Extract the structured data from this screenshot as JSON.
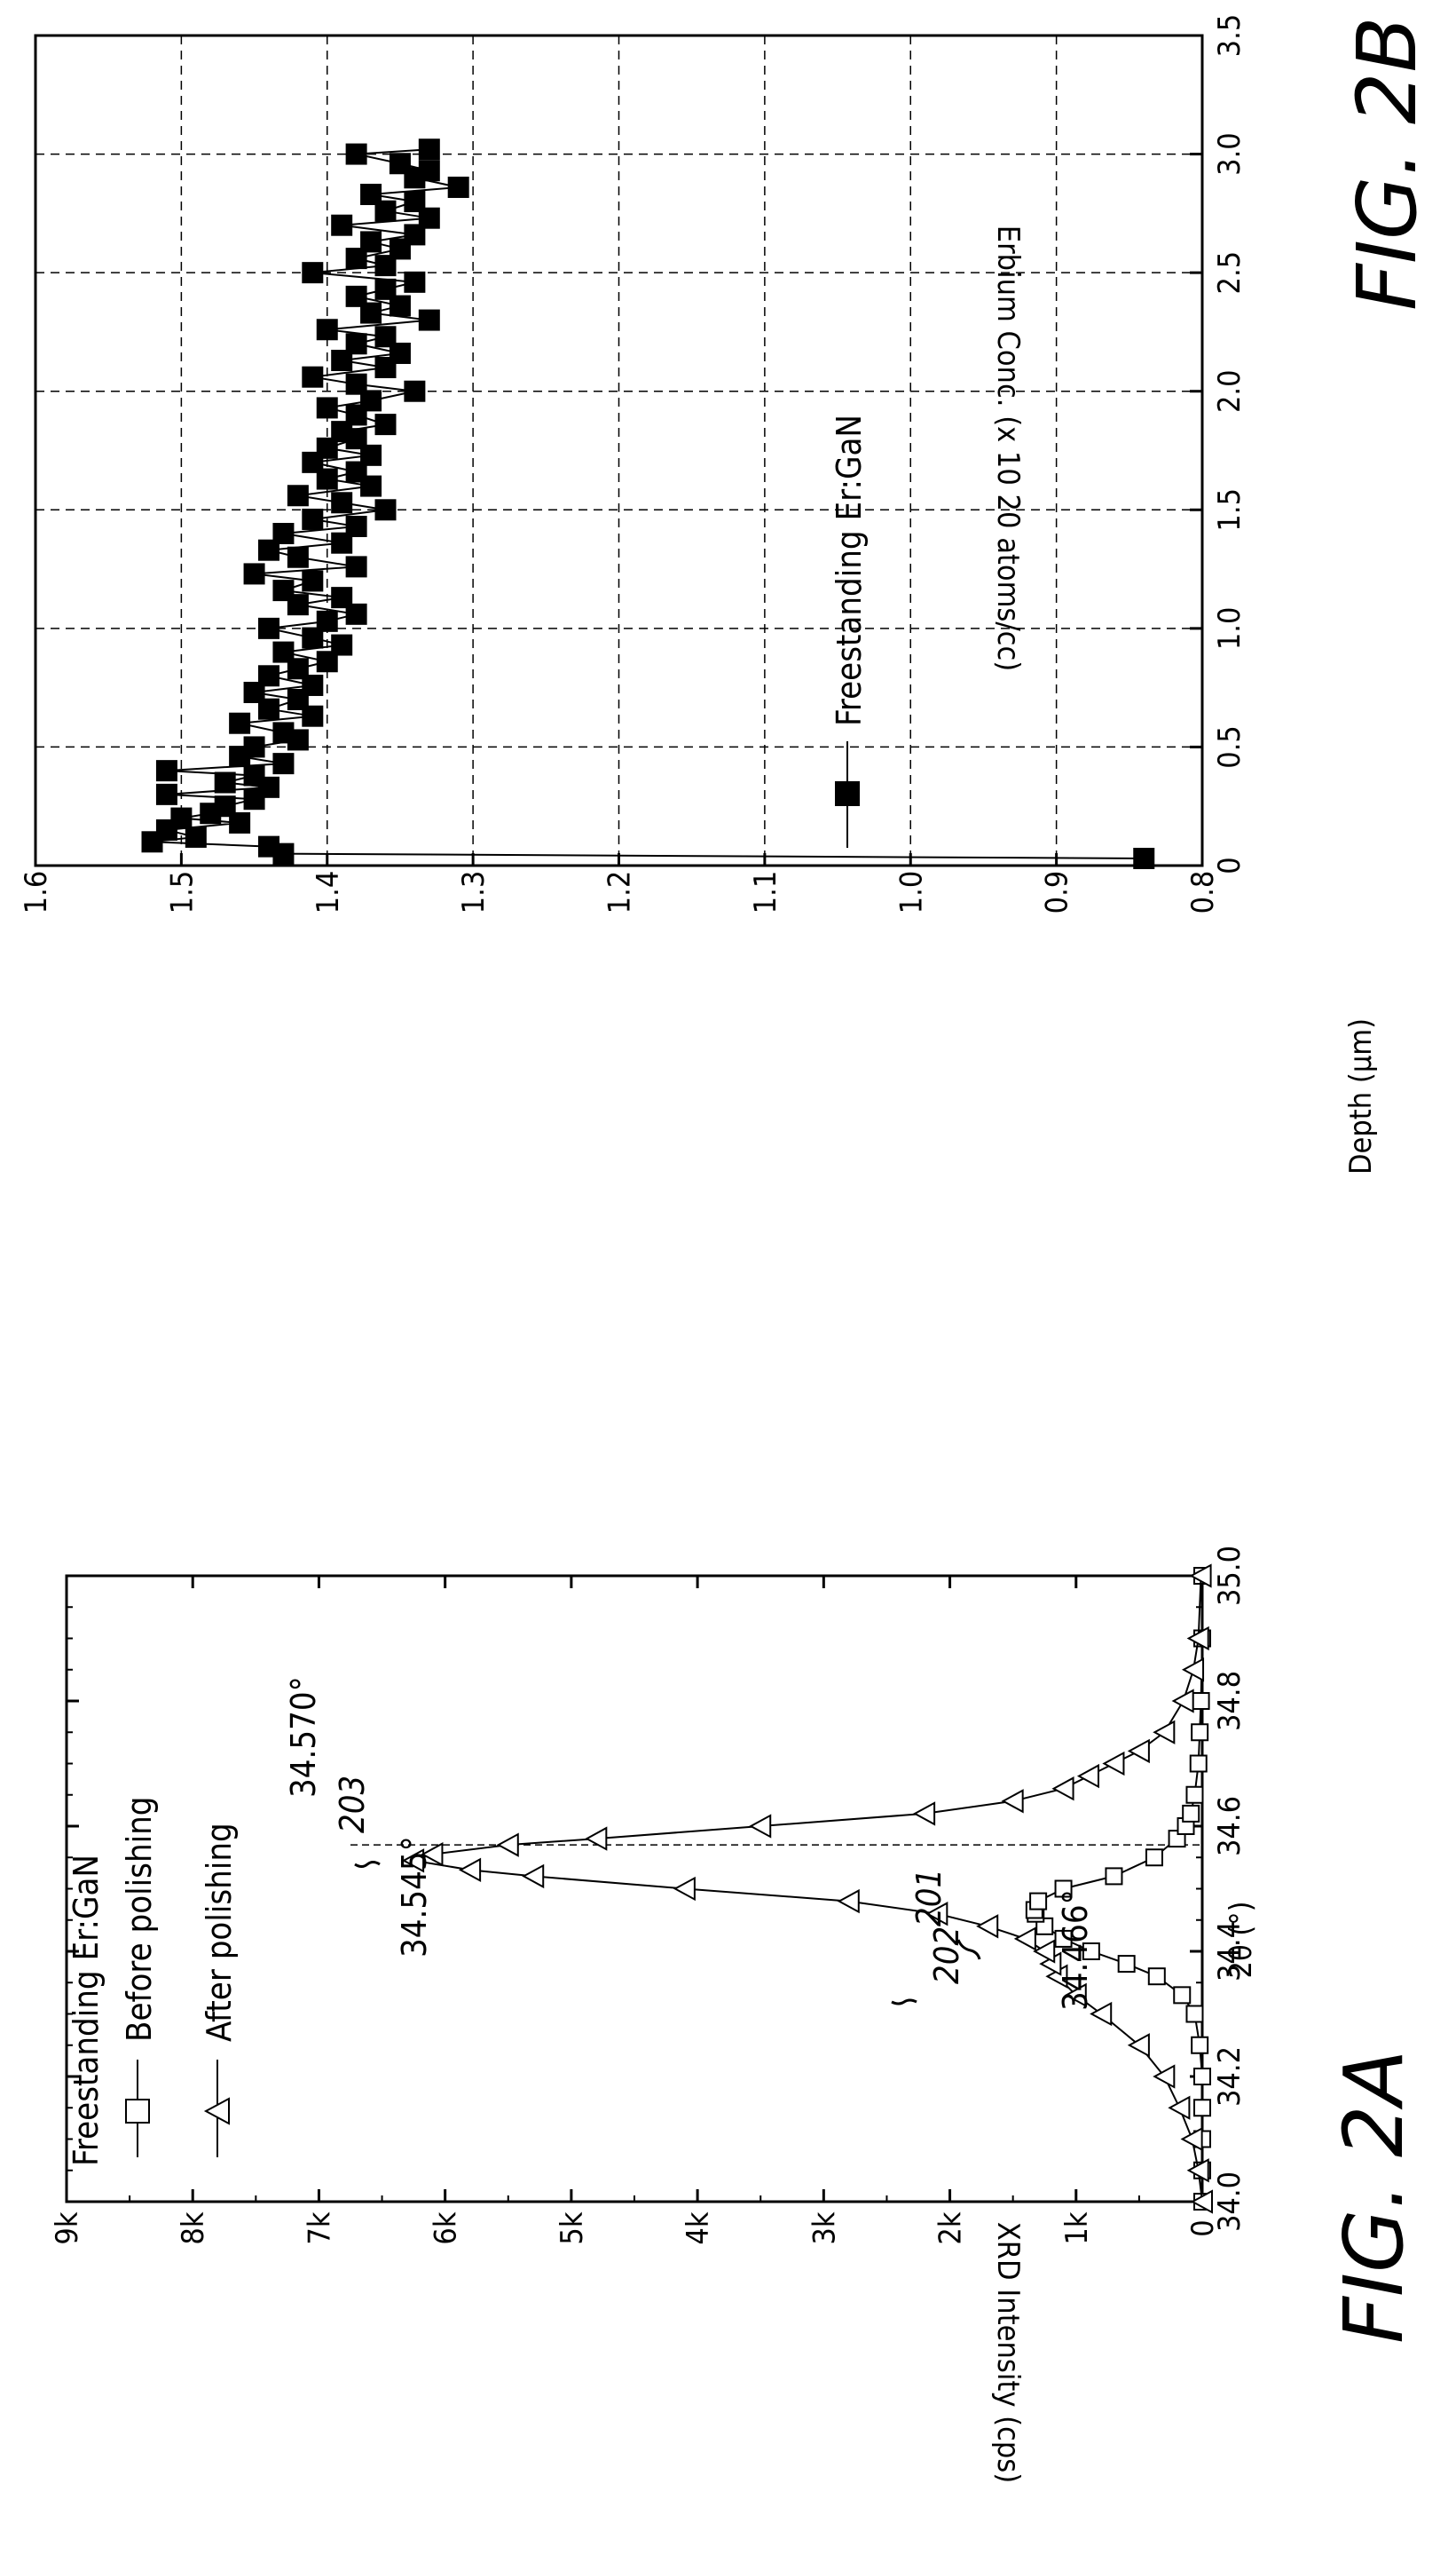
{
  "chart_data": [
    {
      "id": "2A",
      "type": "scatter",
      "figure_label": "FIG. 2A",
      "xlabel": "2θ (°)",
      "ylabel": "XRD Intensity (cps)",
      "xlim": [
        34.0,
        35.0
      ],
      "ylim": [
        0,
        9000
      ],
      "xticks": [
        34.0,
        34.2,
        34.4,
        34.6,
        34.8,
        35.0
      ],
      "xtick_labels": [
        "34.0",
        "34.2",
        "34.4",
        "34.6",
        "34.8",
        "35.0"
      ],
      "yticks": [
        0,
        1000,
        2000,
        3000,
        4000,
        5000,
        6000,
        7000,
        8000,
        9000
      ],
      "ytick_labels": [
        "0",
        "1k",
        "2k",
        "3k",
        "4k",
        "5k",
        "6k",
        "7k",
        "8k",
        "9k"
      ],
      "legend_title": "Freestanding Er:GaN",
      "series": [
        {
          "name": "Before polishing",
          "marker": "square-open",
          "x": [
            34.0,
            34.05,
            34.1,
            34.15,
            34.2,
            34.25,
            34.3,
            34.33,
            34.36,
            34.38,
            34.4,
            34.42,
            34.44,
            34.46,
            34.466,
            34.48,
            34.5,
            34.52,
            34.55,
            34.58,
            34.6,
            34.62,
            34.65,
            34.7,
            34.75,
            34.8,
            34.9,
            35.0
          ],
          "y": [
            0,
            0,
            0,
            0,
            0,
            20,
            60,
            160,
            360,
            600,
            880,
            1100,
            1250,
            1320,
            1330,
            1300,
            1100,
            700,
            380,
            200,
            130,
            90,
            60,
            30,
            20,
            10,
            0,
            0
          ]
        },
        {
          "name": "After polishing",
          "marker": "triangle-open",
          "x": [
            34.0,
            34.05,
            34.1,
            34.15,
            34.2,
            34.25,
            34.3,
            34.33,
            34.36,
            34.38,
            34.4,
            34.42,
            34.44,
            34.46,
            34.48,
            34.5,
            34.52,
            34.53,
            34.545,
            34.555,
            34.57,
            34.58,
            34.6,
            34.62,
            34.64,
            34.66,
            34.68,
            34.7,
            34.72,
            34.75,
            34.8,
            34.85,
            34.9,
            35.0
          ],
          "y": [
            0,
            30,
            80,
            180,
            300,
            500,
            800,
            1000,
            1150,
            1200,
            1250,
            1400,
            1700,
            2100,
            2800,
            4100,
            5300,
            5800,
            6250,
            6100,
            5500,
            4800,
            3500,
            2200,
            1500,
            1100,
            900,
            700,
            500,
            300,
            150,
            70,
            30,
            10
          ]
        }
      ],
      "annotations": [
        {
          "text": "34.570°",
          "x": 34.57
        },
        {
          "text": "34.545°",
          "x": 34.545
        },
        {
          "text": "34.466°",
          "x": 34.466
        },
        {
          "text": "203",
          "ref": "After polishing peak"
        },
        {
          "text": "202",
          "ref": "After polishing"
        },
        {
          "text": "201",
          "ref": "Before polishing"
        }
      ],
      "vline": 34.57,
      "grid": false
    },
    {
      "id": "2B",
      "type": "line",
      "figure_label": "FIG. 2B",
      "xlabel": "Depth (μm)",
      "ylabel": "Erbium Conc. (x 10 20 atoms/cc)",
      "xlim": [
        0,
        3.5
      ],
      "ylim": [
        0.8,
        1.6
      ],
      "xticks": [
        0,
        0.5,
        1.0,
        1.5,
        2.0,
        2.5,
        3.0,
        3.5
      ],
      "xtick_labels": [
        "0",
        "0.5",
        "1.0",
        "1.5",
        "2.0",
        "2.5",
        "3.0",
        "3.5"
      ],
      "yticks": [
        0.8,
        0.9,
        1.0,
        1.1,
        1.2,
        1.3,
        1.4,
        1.5,
        1.6
      ],
      "ytick_labels": [
        "0.8",
        "0.9",
        "1.0",
        "1.1",
        "1.2",
        "1.3",
        "1.4",
        "1.5",
        "1.6"
      ],
      "grid": true,
      "series": [
        {
          "name": "Freestanding Er:GaN",
          "marker": "square-filled",
          "x": [
            0.03,
            0.05,
            0.08,
            0.1,
            0.12,
            0.15,
            0.18,
            0.2,
            0.22,
            0.25,
            0.28,
            0.3,
            0.33,
            0.35,
            0.38,
            0.4,
            0.43,
            0.46,
            0.5,
            0.53,
            0.56,
            0.6,
            0.63,
            0.66,
            0.7,
            0.73,
            0.76,
            0.8,
            0.83,
            0.86,
            0.9,
            0.93,
            0.96,
            1.0,
            1.03,
            1.06,
            1.1,
            1.13,
            1.16,
            1.2,
            1.23,
            1.26,
            1.3,
            1.33,
            1.36,
            1.4,
            1.43,
            1.46,
            1.5,
            1.53,
            1.56,
            1.6,
            1.63,
            1.66,
            1.7,
            1.73,
            1.76,
            1.8,
            1.83,
            1.86,
            1.9,
            1.93,
            1.96,
            2.0,
            2.03,
            2.06,
            2.1,
            2.13,
            2.16,
            2.2,
            2.23,
            2.26,
            2.3,
            2.33,
            2.36,
            2.4,
            2.43,
            2.46,
            2.5,
            2.53,
            2.56,
            2.6,
            2.63,
            2.66,
            2.7,
            2.73,
            2.76,
            2.8,
            2.83,
            2.86,
            2.9,
            2.93,
            2.96,
            3.0,
            3.02
          ],
          "y": [
            0.84,
            1.43,
            1.44,
            1.52,
            1.49,
            1.51,
            1.46,
            1.5,
            1.48,
            1.47,
            1.45,
            1.51,
            1.44,
            1.47,
            1.45,
            1.51,
            1.43,
            1.46,
            1.45,
            1.42,
            1.43,
            1.46,
            1.41,
            1.44,
            1.42,
            1.45,
            1.41,
            1.44,
            1.42,
            1.4,
            1.43,
            1.39,
            1.41,
            1.44,
            1.4,
            1.38,
            1.42,
            1.39,
            1.43,
            1.41,
            1.45,
            1.38,
            1.42,
            1.44,
            1.39,
            1.43,
            1.38,
            1.41,
            1.36,
            1.39,
            1.42,
            1.37,
            1.4,
            1.38,
            1.41,
            1.37,
            1.4,
            1.38,
            1.39,
            1.36,
            1.38,
            1.4,
            1.37,
            1.34,
            1.38,
            1.41,
            1.36,
            1.39,
            1.35,
            1.38,
            1.36,
            1.4,
            1.33,
            1.37,
            1.35,
            1.38,
            1.36,
            1.34,
            1.41,
            1.36,
            1.38,
            1.35,
            1.37,
            1.34,
            1.39,
            1.33,
            1.36,
            1.34,
            1.37,
            1.31,
            1.34,
            1.33,
            1.35,
            1.38,
            1.33
          ]
        }
      ]
    }
  ]
}
